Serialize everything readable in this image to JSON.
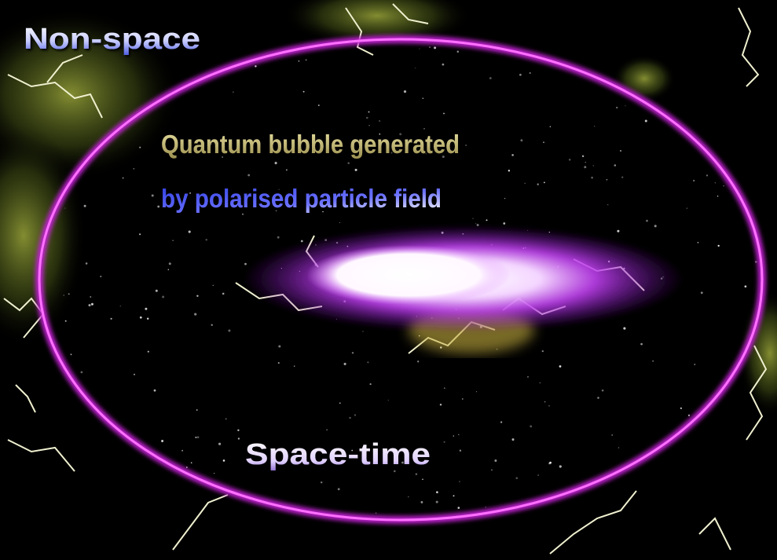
{
  "labels": {
    "outer": "Non-space",
    "bubble_line1": "Quantum bubble generated",
    "bubble_line2": "by polarised particle field",
    "inner": "Space-time"
  }
}
